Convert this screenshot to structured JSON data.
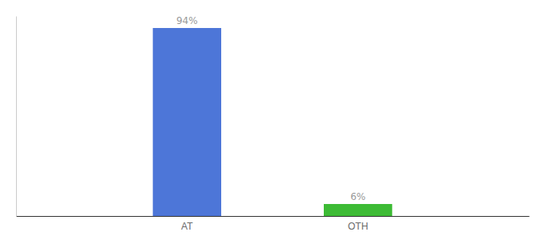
{
  "chart_data": {
    "type": "bar",
    "categories": [
      "AT",
      "OTH"
    ],
    "values": [
      94,
      6
    ],
    "value_labels": [
      "94%",
      "6%"
    ],
    "data_labels": true,
    "colors": [
      "#4d76d8",
      "#3dbb35"
    ],
    "ylim": [
      0,
      100
    ],
    "yticks": [],
    "tick_labels": "x",
    "grid": false
  }
}
